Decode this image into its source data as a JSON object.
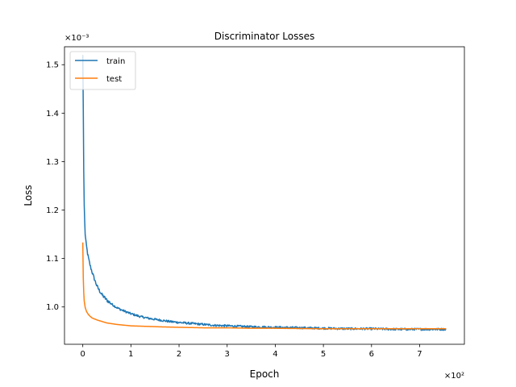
{
  "chart_data": {
    "type": "line",
    "title": "Discriminator Losses",
    "xlabel": "Epoch",
    "ylabel": "Loss",
    "x_multiplier_label": "×10²",
    "y_multiplier_label": "×10⁻³",
    "x_multiplier": 100,
    "y_multiplier": 0.001,
    "xlim": [
      -38,
      793
    ],
    "ylim": [
      0.000923,
      0.001537
    ],
    "x_ticks": [
      {
        "value": 0,
        "label": "0"
      },
      {
        "value": 100,
        "label": "1"
      },
      {
        "value": 200,
        "label": "2"
      },
      {
        "value": 300,
        "label": "3"
      },
      {
        "value": 400,
        "label": "4"
      },
      {
        "value": 500,
        "label": "5"
      },
      {
        "value": 600,
        "label": "6"
      },
      {
        "value": 700,
        "label": "7"
      }
    ],
    "y_ticks": [
      {
        "value": 0.001,
        "label": "1.0"
      },
      {
        "value": 0.0011,
        "label": "1.1"
      },
      {
        "value": 0.0012,
        "label": "1.2"
      },
      {
        "value": 0.0013,
        "label": "1.3"
      },
      {
        "value": 0.0014,
        "label": "1.4"
      },
      {
        "value": 0.0015,
        "label": "1.5"
      }
    ],
    "grid": false,
    "legend_position": "upper-left",
    "series": [
      {
        "name": "train",
        "color": "#1f77b4",
        "x": [
          0,
          1,
          2,
          3,
          4,
          5,
          7,
          10,
          13,
          16,
          20,
          25,
          30,
          35,
          40,
          50,
          60,
          70,
          80,
          90,
          100,
          120,
          140,
          160,
          180,
          200,
          225,
          250,
          275,
          300,
          350,
          400,
          450,
          500,
          550,
          600,
          650,
          700,
          755
        ],
        "y": [
          0.00152,
          0.00141,
          0.00128,
          0.00121,
          0.001175,
          0.00115,
          0.00113,
          0.00111,
          0.001095,
          0.001083,
          0.00107,
          0.001055,
          0.001042,
          0.001033,
          0.001025,
          0.001014,
          0.001006,
          0.000999,
          0.000994,
          0.00099,
          0.000986,
          0.00098,
          0.000976,
          0.000973,
          0.00097,
          0.000968,
          0.000966,
          0.000964,
          0.000962,
          0.000961,
          0.000959,
          0.000958,
          0.000957,
          0.000956,
          0.000955,
          0.000955,
          0.000954,
          0.000954,
          0.000954
        ],
        "noise": 2.2e-06
      },
      {
        "name": "test",
        "color": "#ff7f0e",
        "x": [
          0,
          1,
          2,
          3,
          5,
          8,
          12,
          16,
          20,
          30,
          40,
          50,
          70,
          100,
          130,
          160,
          200,
          250,
          300,
          350,
          400,
          500,
          600,
          700,
          755
        ],
        "y": [
          0.001133,
          0.00106,
          0.00103,
          0.001012,
          0.000999,
          0.00099,
          0.000984,
          0.00098,
          0.000977,
          0.000973,
          0.00097,
          0.000967,
          0.000964,
          0.000961,
          0.00096,
          0.000959,
          0.000958,
          0.000957,
          0.000957,
          0.000956,
          0.000956,
          0.000955,
          0.000955,
          0.000955,
          0.000955
        ],
        "noise": 0
      }
    ]
  }
}
